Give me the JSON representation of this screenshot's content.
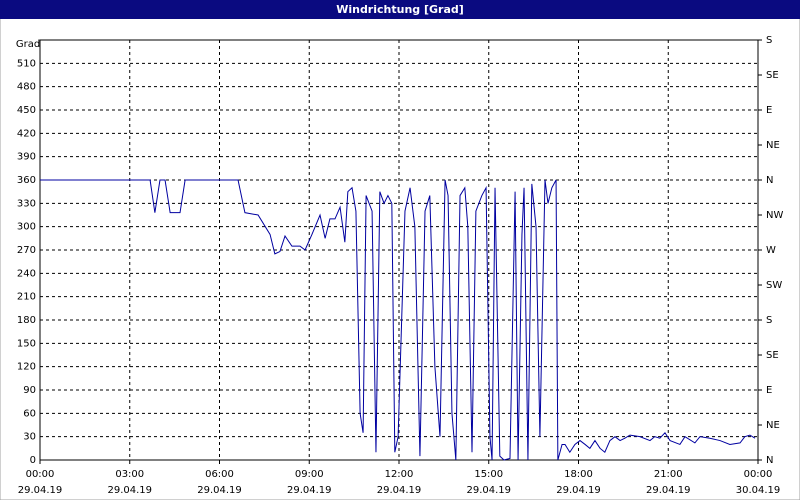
{
  "chart_data": {
    "type": "line",
    "title": "Windrichtung [Grad]",
    "y_label": "Grad",
    "color": "#0000a0",
    "grid": true,
    "xlim": [
      0,
      24
    ],
    "xticks": [
      {
        "value": 0,
        "label": [
          "00:00",
          "29.04.19"
        ]
      },
      {
        "value": 3,
        "label": [
          "03:00",
          "29.04.19"
        ]
      },
      {
        "value": 6,
        "label": [
          "06:00",
          "29.04.19"
        ]
      },
      {
        "value": 9,
        "label": [
          "09:00",
          "29.04.19"
        ]
      },
      {
        "value": 12,
        "label": [
          "12:00",
          "29.04.19"
        ]
      },
      {
        "value": 15,
        "label": [
          "15:00",
          "29.04.19"
        ]
      },
      {
        "value": 18,
        "label": [
          "18:00",
          "29.04.19"
        ]
      },
      {
        "value": 21,
        "label": [
          "21:00",
          "29.04.19"
        ]
      },
      {
        "value": 24,
        "label": [
          "00:00",
          "30.04.19"
        ]
      }
    ],
    "ylim": [
      0,
      540
    ],
    "yticks": [
      0,
      30,
      60,
      90,
      120,
      150,
      180,
      210,
      240,
      270,
      300,
      330,
      360,
      390,
      420,
      450,
      480,
      510
    ],
    "y2lim": [
      0,
      540
    ],
    "y2ticks": [
      {
        "value": 0,
        "label": "N"
      },
      {
        "value": 45,
        "label": "NE"
      },
      {
        "value": 90,
        "label": "E"
      },
      {
        "value": 135,
        "label": "SE"
      },
      {
        "value": 180,
        "label": "S"
      },
      {
        "value": 225,
        "label": "SW"
      },
      {
        "value": 270,
        "label": "W"
      },
      {
        "value": 315,
        "label": "NW"
      },
      {
        "value": 360,
        "label": "N"
      },
      {
        "value": 405,
        "label": "NE"
      },
      {
        "value": 450,
        "label": "E"
      },
      {
        "value": 495,
        "label": "SE"
      },
      {
        "value": 540,
        "label": "S"
      }
    ],
    "x": [
      0,
      3.68,
      3.84,
      4.01,
      4.18,
      4.35,
      4.68,
      4.85,
      6.62,
      6.85,
      7.29,
      7.69,
      7.85,
      8.02,
      8.19,
      8.42,
      8.69,
      8.86,
      9.09,
      9.36,
      9.53,
      9.69,
      9.86,
      10.03,
      10.19,
      10.29,
      10.43,
      10.56,
      10.7,
      10.8,
      10.9,
      11.1,
      11.23,
      11.36,
      11.5,
      11.63,
      11.76,
      11.86,
      11.97,
      12.2,
      12.37,
      12.53,
      12.7,
      12.87,
      13.03,
      13.2,
      13.37,
      13.54,
      13.64,
      13.77,
      13.9,
      14.04,
      14.2,
      14.3,
      14.44,
      14.57,
      14.77,
      14.91,
      15.04,
      15.11,
      15.21,
      15.37,
      15.51,
      15.71,
      15.88,
      15.98,
      16.11,
      16.18,
      16.31,
      16.44,
      16.58,
      16.71,
      16.88,
      16.98,
      17.11,
      17.25,
      17.31,
      17.45,
      17.55,
      17.71,
      17.88,
      18.05,
      18.22,
      18.38,
      18.55,
      18.72,
      18.88,
      19.05,
      19.22,
      19.39,
      19.55,
      19.72,
      20.05,
      20.39,
      20.55,
      20.72,
      20.89,
      21.06,
      21.39,
      21.56,
      21.89,
      22.06,
      22.39,
      22.73,
      23.06,
      23.4,
      23.56,
      23.73,
      23.9
    ],
    "values": [
      360,
      360,
      318,
      360,
      360,
      318,
      318,
      360,
      360,
      318,
      315,
      290,
      265,
      268,
      288,
      275,
      275,
      270,
      290,
      315,
      285,
      310,
      310,
      325,
      280,
      345,
      350,
      320,
      60,
      35,
      340,
      320,
      10,
      345,
      330,
      340,
      330,
      10,
      30,
      320,
      350,
      300,
      5,
      320,
      340,
      120,
      30,
      360,
      340,
      60,
      0,
      340,
      350,
      300,
      10,
      320,
      340,
      350,
      30,
      0,
      350,
      5,
      0,
      2,
      345,
      0,
      290,
      350,
      0,
      355,
      300,
      30,
      360,
      330,
      350,
      360,
      0,
      20,
      20,
      10,
      20,
      25,
      20,
      15,
      25,
      15,
      10,
      25,
      30,
      25,
      28,
      32,
      30,
      25,
      30,
      28,
      35,
      25,
      20,
      30,
      22,
      30,
      28,
      25,
      20,
      22,
      30,
      32,
      28
    ]
  }
}
